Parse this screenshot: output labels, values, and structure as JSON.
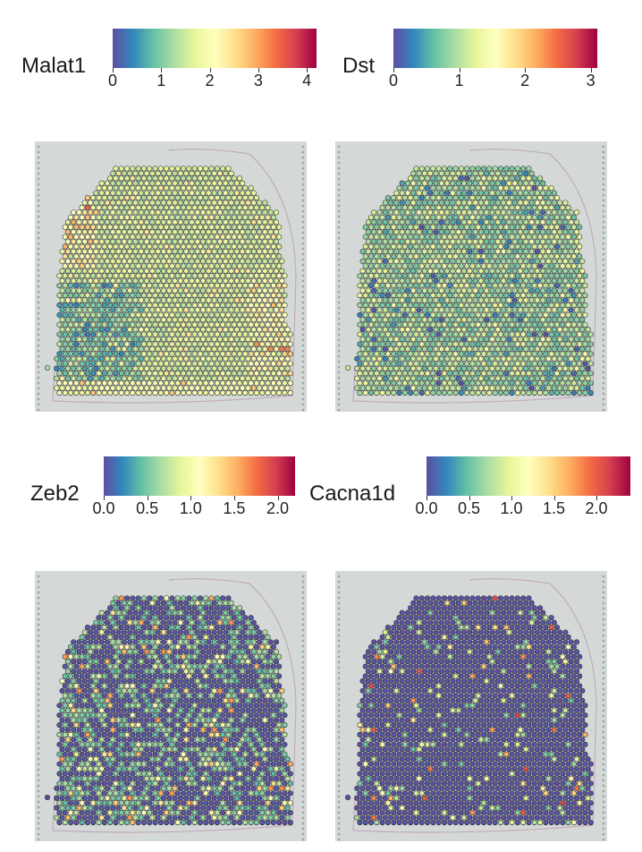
{
  "palette": [
    "#5E4FA2",
    "#3288BD",
    "#66C2A5",
    "#ABDDA4",
    "#E6F598",
    "#FFFFBF",
    "#FEE08B",
    "#FDAE61",
    "#F46D43",
    "#D53E4F",
    "#9E0142"
  ],
  "colors": {
    "background": "#ffffff",
    "slide": "#d4d9d8",
    "spot_outline": "#1c1c1c",
    "fiducial": "#9aa1a0",
    "tissue_edge": "#b58aa9"
  },
  "chart_data": [
    {
      "type": "scatter",
      "title": "Malat1",
      "colorbar": {
        "min": 0,
        "max": 4.2,
        "ticks": [
          0,
          1,
          2,
          3,
          4
        ],
        "tick_labels": [
          "0",
          "1",
          "2",
          "3",
          "4"
        ]
      },
      "expression_pattern": {
        "mean": 1.3,
        "high_regions": "left edge and bottom right",
        "low_regions": "lower left"
      }
    },
    {
      "type": "scatter",
      "title": "Dst",
      "colorbar": {
        "min": 0,
        "max": 3.1,
        "ticks": [
          0,
          1,
          2,
          3
        ],
        "tick_labels": [
          "0",
          "1",
          "2",
          "3"
        ]
      },
      "expression_pattern": {
        "mean": 0.9,
        "high_regions": "scattered",
        "low_regions": "scattered"
      }
    },
    {
      "type": "scatter",
      "title": "Zeb2",
      "colorbar": {
        "min": 0,
        "max": 2.2,
        "ticks": [
          0.0,
          0.5,
          1.0,
          1.5,
          2.0
        ],
        "tick_labels": [
          "0.0",
          "0.5",
          "1.0",
          "1.5",
          "2.0"
        ]
      },
      "expression_pattern": {
        "mean": 0.35,
        "high_regions": "scattered",
        "low_regions": "most spots"
      }
    },
    {
      "type": "scatter",
      "title": "Cacna1d",
      "colorbar": {
        "min": 0,
        "max": 2.4,
        "ticks": [
          0.0,
          0.5,
          1.0,
          1.5,
          2.0
        ],
        "tick_labels": [
          "0.0",
          "0.5",
          "1.0",
          "1.5",
          "2.0"
        ]
      },
      "expression_pattern": {
        "mean": 0.15,
        "high_regions": "sparse",
        "low_regions": "most spots"
      }
    }
  ]
}
